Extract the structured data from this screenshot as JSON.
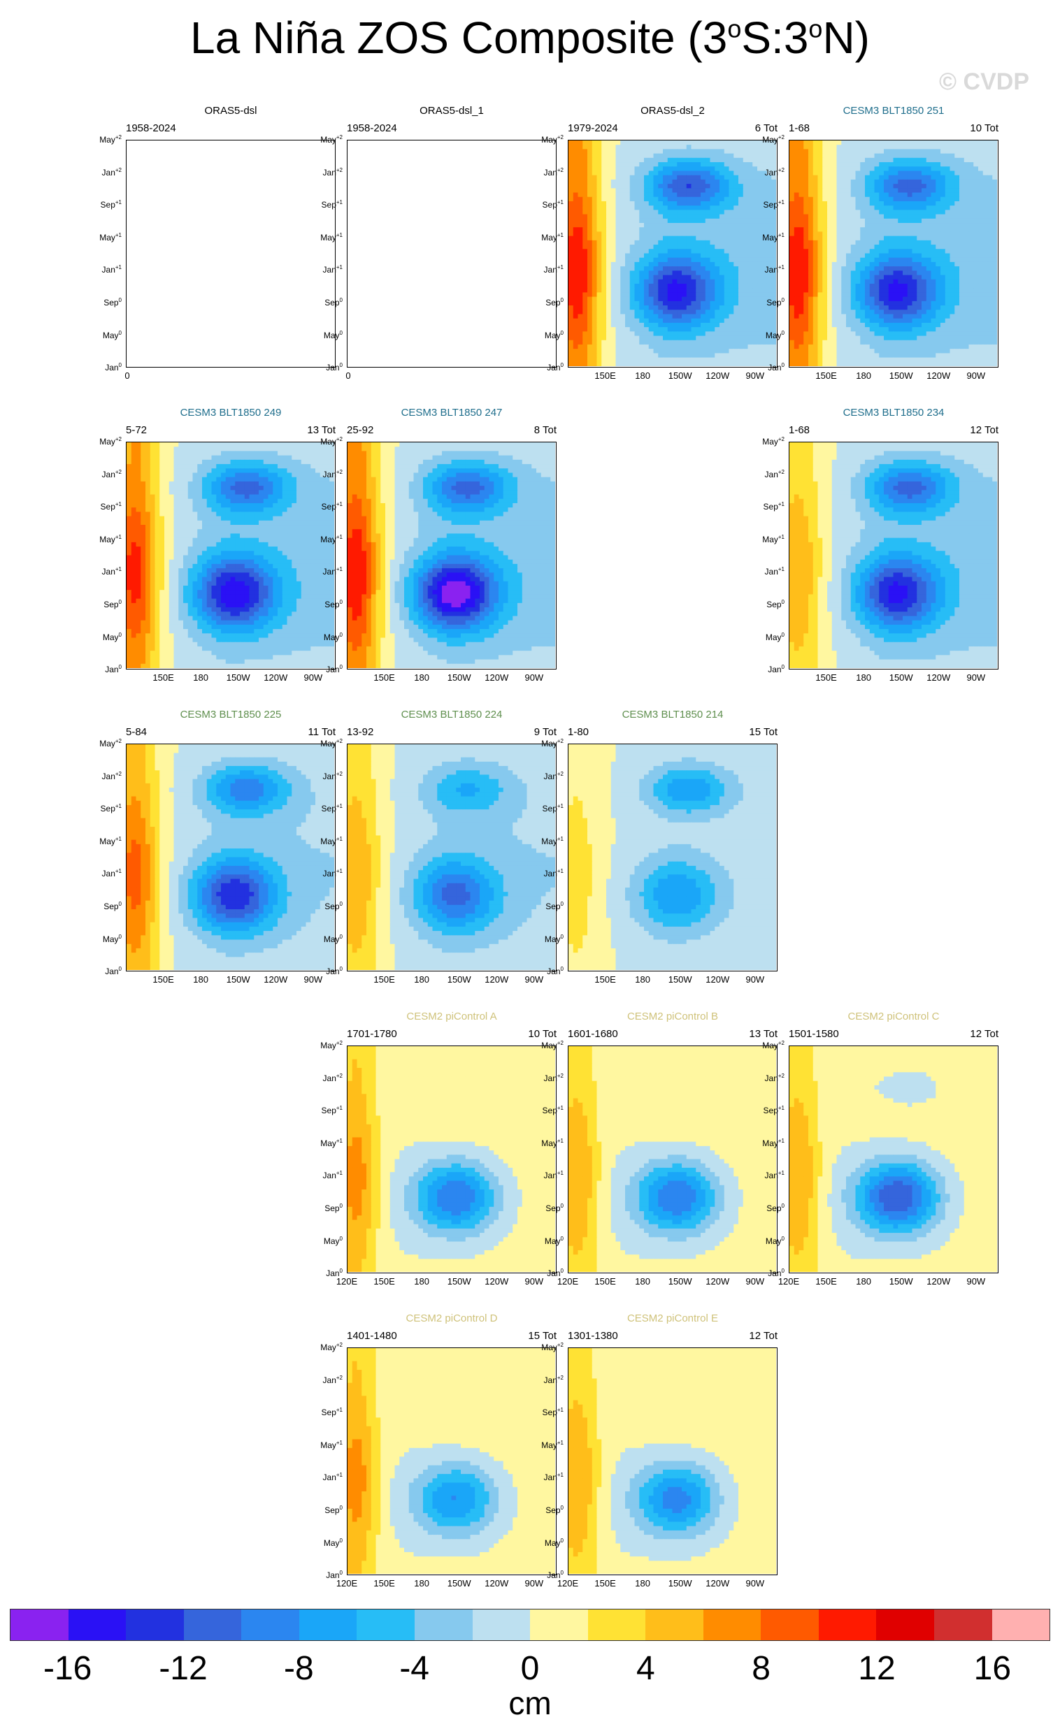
{
  "figure": {
    "title_text": "La Niña ZOS Composite (3",
    "title_deg1": "o",
    "title_mid": "S:3",
    "title_deg2": "o",
    "title_end": "N)",
    "watermark": "© CVDP",
    "units": "cm"
  },
  "chart_data": {
    "type": "heatmap",
    "description_title": "La Niña ZOS Composite (3oS:3oN)",
    "y_axis_labels": [
      {
        "month": "May",
        "sup": "+2"
      },
      {
        "month": "Jan",
        "sup": "+2"
      },
      {
        "month": "Sep",
        "sup": "+1"
      },
      {
        "month": "May",
        "sup": "+1"
      },
      {
        "month": "Jan",
        "sup": "+1"
      },
      {
        "month": "Sep",
        "sup": "0"
      },
      {
        "month": "May",
        "sup": "0"
      },
      {
        "month": "Jan",
        "sup": "0"
      }
    ],
    "x_axis_labels": [
      "120E",
      "150E",
      "180",
      "150W",
      "120W",
      "90W"
    ],
    "empty_x_label": "0",
    "colorbar": {
      "levels": [
        -16,
        -14,
        -12,
        -10,
        -8,
        -6,
        -4,
        -2,
        0,
        2,
        4,
        6,
        8,
        10,
        12,
        14,
        16
      ],
      "tick_labels": [
        "-16",
        "-12",
        "-8",
        "-4",
        "0",
        "4",
        "8",
        "12",
        "16"
      ],
      "colors": [
        "#8a22f0",
        "#2a11f5",
        "#2231e0",
        "#3565dc",
        "#2b86f0",
        "#1aa6f8",
        "#27bdf6",
        "#86c9ee",
        "#bde0f0",
        "#fff7a0",
        "#ffe234",
        "#ffbe1a",
        "#ff8c00",
        "#ff5a00",
        "#ff1a00",
        "#e00000",
        "#d12f2f",
        "#ffb0b0"
      ]
    },
    "panels": [
      {
        "id": "oras5-dsl",
        "title": "ORAS5-dsl",
        "title_color": "#000000",
        "period": "1958-2024",
        "count": "",
        "has_data": false,
        "show_x_labels": false,
        "pattern": null
      },
      {
        "id": "oras5-dsl-1",
        "title": "ORAS5-dsl_1",
        "title_color": "#000000",
        "period": "1958-2024",
        "count": "",
        "has_data": false,
        "show_x_labels": false,
        "pattern": null
      },
      {
        "id": "oras5-dsl-2",
        "title": "ORAS5-dsl_2",
        "title_color": "#000000",
        "period": "1979-2024",
        "count": "6 Tot",
        "has_data": true,
        "show_x_labels": true,
        "x_first_label": false,
        "pattern": {
          "west_max": 12,
          "tilt": 0.75,
          "first_min": -12,
          "second_min": -10,
          "baseline": -3
        }
      },
      {
        "id": "cesm3-251",
        "title": "CESM3 BLT1850 251",
        "title_color": "#1f6e8c",
        "period": "1-68",
        "count": "10 Tot",
        "has_data": true,
        "show_x_labels": true,
        "x_first_label": false,
        "pattern": {
          "west_max": 12,
          "tilt": 0.3,
          "first_min": -12,
          "second_min": -9,
          "baseline": -3
        }
      },
      {
        "id": "cesm3-249",
        "title": "CESM3 BLT1850 249",
        "title_color": "#1f6e8c",
        "period": "5-72",
        "count": "13 Tot",
        "has_data": true,
        "show_x_labels": true,
        "x_first_label": false,
        "pattern": {
          "west_max": 11,
          "tilt": 0.3,
          "first_min": -13,
          "second_min": -9,
          "baseline": -3
        }
      },
      {
        "id": "cesm3-247",
        "title": "CESM3 BLT1850 247",
        "title_color": "#1f6e8c",
        "period": "25-92",
        "count": "8 Tot",
        "has_data": true,
        "show_x_labels": true,
        "x_first_label": false,
        "pattern": {
          "west_max": 12,
          "tilt": 0.3,
          "first_min": -15,
          "second_min": -9,
          "baseline": -3
        }
      },
      {
        "id": "cesm3-234",
        "title": "CESM3 BLT1850 234",
        "title_color": "#1f6e8c",
        "period": "1-68",
        "count": "12 Tot",
        "has_data": true,
        "show_x_labels": true,
        "x_first_label": false,
        "pattern": {
          "west_max": 6,
          "tilt": 0.3,
          "first_min": -12,
          "second_min": -9,
          "baseline": -3
        }
      },
      {
        "id": "cesm3-225",
        "title": "CESM3 BLT1850 225",
        "title_color": "#5f8f4e",
        "period": "5-84",
        "count": "11 Tot",
        "has_data": true,
        "show_x_labels": true,
        "x_first_label": false,
        "pattern": {
          "west_max": 9,
          "tilt": 0.3,
          "first_min": -12,
          "second_min": -8,
          "baseline": -2
        }
      },
      {
        "id": "cesm3-224",
        "title": "CESM3 BLT1850 224",
        "title_color": "#5f8f4e",
        "period": "13-92",
        "count": "9 Tot",
        "has_data": true,
        "show_x_labels": true,
        "x_first_label": false,
        "pattern": {
          "west_max": 6,
          "tilt": 0.3,
          "first_min": -9,
          "second_min": -5,
          "baseline": -2
        }
      },
      {
        "id": "cesm3-214",
        "title": "CESM3 BLT1850 214",
        "title_color": "#5f8f4e",
        "period": "1-80",
        "count": "15 Tot",
        "has_data": true,
        "show_x_labels": true,
        "x_first_label": false,
        "pattern": {
          "west_max": 3,
          "tilt": 0.3,
          "first_min": -7,
          "second_min": -7,
          "baseline": -1
        }
      },
      {
        "id": "cesm2-a",
        "title": "CESM2 piControl A",
        "title_color": "#cfc27a",
        "period": "1701-1780",
        "count": "10 Tot",
        "has_data": true,
        "show_x_labels": true,
        "x_first_label": true,
        "pattern": {
          "west_max": 7,
          "tilt": 0.35,
          "first_min": -11,
          "second_min": 1,
          "baseline": 1
        }
      },
      {
        "id": "cesm2-b",
        "title": "CESM2 piControl B",
        "title_color": "#cfc27a",
        "period": "1601-1680",
        "count": "13 Tot",
        "has_data": true,
        "show_x_labels": true,
        "x_first_label": true,
        "pattern": {
          "west_max": 6,
          "tilt": 0.35,
          "first_min": -11,
          "second_min": 0,
          "baseline": 1
        }
      },
      {
        "id": "cesm2-c",
        "title": "CESM2 piControl C",
        "title_color": "#cfc27a",
        "period": "1501-1580",
        "count": "12 Tot",
        "has_data": true,
        "show_x_labels": true,
        "x_first_label": true,
        "pattern": {
          "west_max": 6,
          "tilt": 0.35,
          "first_min": -13,
          "second_min": -1,
          "baseline": 1
        }
      },
      {
        "id": "cesm2-d",
        "title": "CESM2 piControl D",
        "title_color": "#cfc27a",
        "period": "1401-1480",
        "count": "15 Tot",
        "has_data": true,
        "show_x_labels": true,
        "x_first_label": true,
        "pattern": {
          "west_max": 7,
          "tilt": 0.35,
          "first_min": -9,
          "second_min": 1,
          "baseline": 1
        }
      },
      {
        "id": "cesm2-e",
        "title": "CESM2 piControl E",
        "title_color": "#cfc27a",
        "period": "1301-1380",
        "count": "12 Tot",
        "has_data": true,
        "show_x_labels": true,
        "x_first_label": true,
        "pattern": {
          "west_max": 6,
          "tilt": 0.35,
          "first_min": -10,
          "second_min": 1,
          "baseline": 1
        }
      }
    ]
  }
}
